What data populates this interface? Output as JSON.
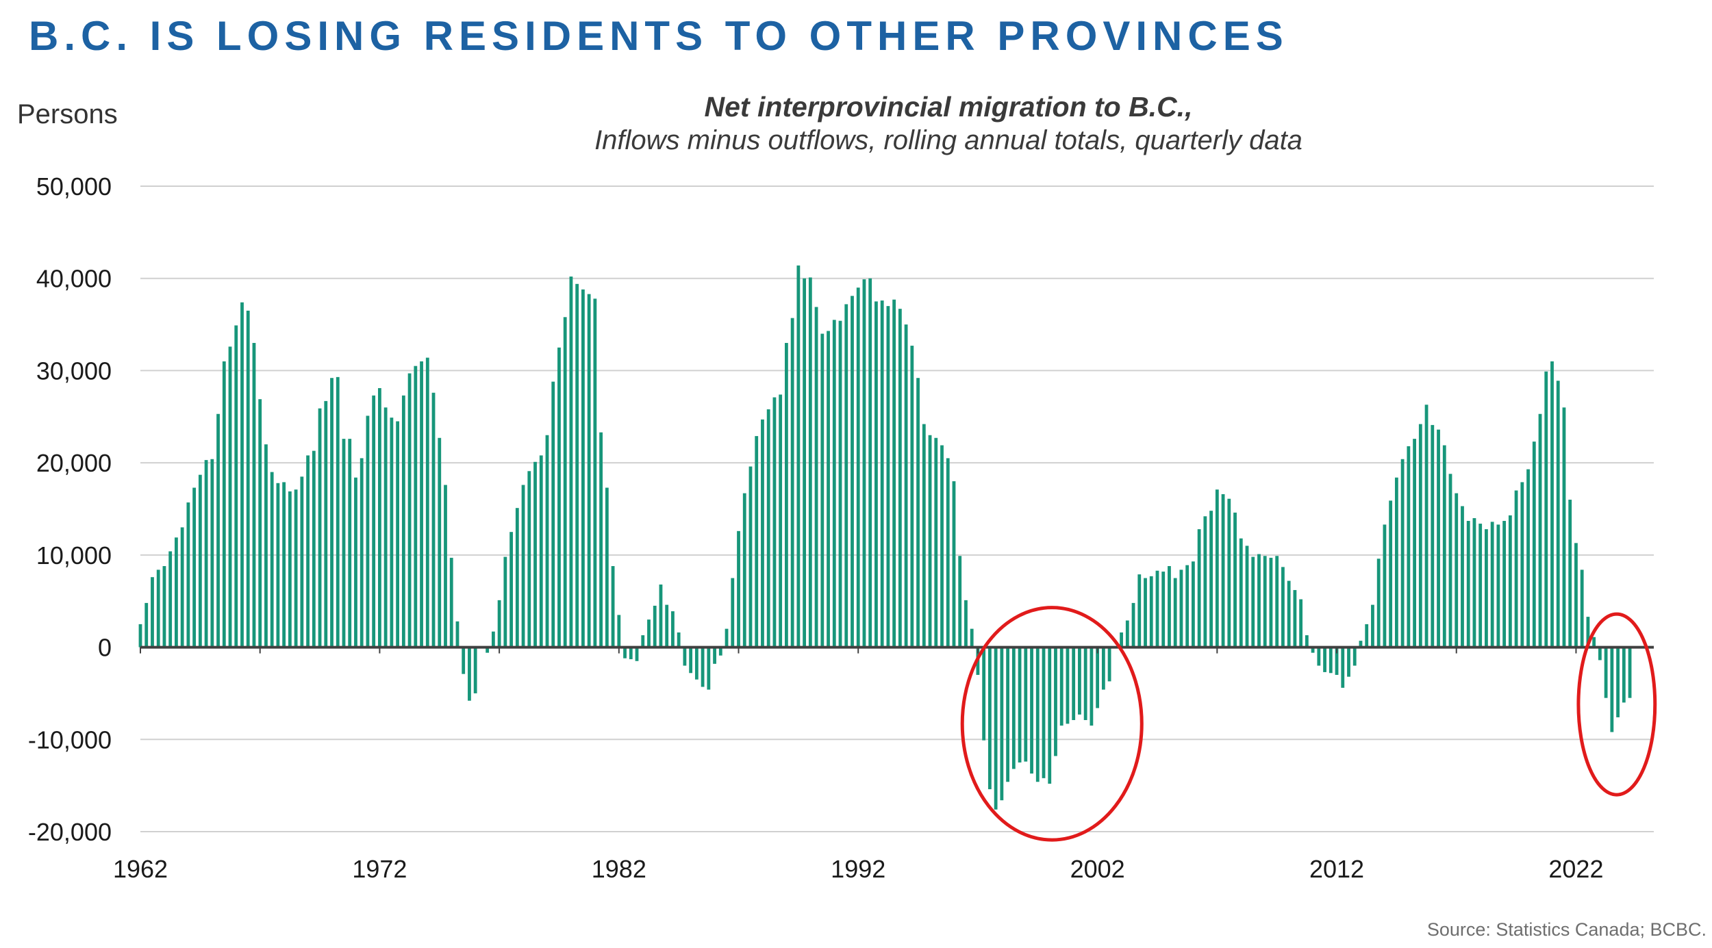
{
  "headline": "B.C. IS LOSING RESIDENTS TO OTHER PROVINCES",
  "source": "Source: Statistics Canada; BCBC.",
  "colors": {
    "headline": "#1d62a3",
    "bars": "#17967a",
    "zero_line": "#404040",
    "grid": "#d0d0d0",
    "highlight_circle": "#e11b1b"
  },
  "chart_data": {
    "type": "bar",
    "title": "Net interprovincial migration to B.C.,",
    "subtitle": "Inflows minus outflows, rolling annual totals, quarterly data",
    "ylabel": "Persons",
    "xlabel": "",
    "ylim": [
      -20000,
      50000
    ],
    "yticks": [
      -20000,
      -10000,
      0,
      10000,
      20000,
      30000,
      40000,
      50000
    ],
    "ytick_labels": [
      "-20,000",
      "-10,000",
      "0",
      "10,000",
      "20,000",
      "30,000",
      "40,000",
      "50,000"
    ],
    "xlim": [
      1962,
      2025.25
    ],
    "xticks": [
      1962,
      1972,
      1982,
      1992,
      2002,
      2012,
      2022
    ],
    "xtick_labels": [
      "1962",
      "1972",
      "1982",
      "1992",
      "2002",
      "2012",
      "2022"
    ],
    "grid": true,
    "legend": "none",
    "x_start": 1962.0,
    "x_step": 0.25,
    "values": [
      2500,
      4800,
      7600,
      8400,
      8800,
      10400,
      11900,
      13000,
      15700,
      17300,
      18700,
      20300,
      20400,
      25300,
      31000,
      32600,
      34900,
      37400,
      36500,
      33000,
      26900,
      22000,
      19000,
      17800,
      17900,
      16900,
      17100,
      18500,
      20800,
      21300,
      25900,
      26700,
      29200,
      29300,
      22600,
      22600,
      18400,
      20500,
      25100,
      27300,
      28100,
      26000,
      24900,
      24500,
      27300,
      29700,
      30500,
      31000,
      31400,
      27600,
      22700,
      17600,
      9700,
      2800,
      -2900,
      -5800,
      -5000,
      0,
      -600,
      1700,
      5100,
      9800,
      12500,
      15100,
      17600,
      19100,
      20100,
      20800,
      23000,
      28800,
      32500,
      35800,
      40200,
      39400,
      38800,
      38300,
      37800,
      23300,
      17300,
      8800,
      3500,
      -1200,
      -1300,
      -1500,
      1300,
      3000,
      4500,
      6800,
      4600,
      3900,
      1600,
      -2000,
      -2800,
      -3500,
      -4300,
      -4600,
      -1800,
      -900,
      2000,
      7500,
      12600,
      16700,
      19600,
      22900,
      24700,
      25800,
      27100,
      27400,
      33000,
      35700,
      41400,
      40000,
      40100,
      36900,
      34000,
      34300,
      35500,
      35400,
      37200,
      38100,
      39000,
      39900,
      40000,
      37500,
      37600,
      37000,
      37700,
      36700,
      35000,
      32700,
      29200,
      24200,
      23000,
      22700,
      21900,
      20500,
      18000,
      9900,
      5100,
      2000,
      -3000,
      -10100,
      -15400,
      -17600,
      -16600,
      -14600,
      -13200,
      -12500,
      -12400,
      -13700,
      -14600,
      -14200,
      -14800,
      -11800,
      -8500,
      -8300,
      -7900,
      -7300,
      -7900,
      -8500,
      -6600,
      -4600,
      -3700,
      0,
      1600,
      2900,
      4800,
      7900,
      7500,
      7700,
      8300,
      8200,
      8800,
      7500,
      8400,
      8900,
      9300,
      12800,
      14200,
      14800,
      17100,
      16600,
      16100,
      14600,
      11800,
      11000,
      9800,
      10100,
      9900,
      9700,
      9900,
      8700,
      7200,
      6200,
      5200,
      1300,
      -600,
      -2000,
      -2700,
      -2800,
      -3000,
      -4400,
      -3200,
      -2000,
      700,
      2500,
      4600,
      9600,
      13300,
      15900,
      18400,
      20400,
      21800,
      22600,
      24200,
      26300,
      24100,
      23600,
      21900,
      18800,
      16700,
      15300,
      13700,
      14000,
      13400,
      12800,
      13600,
      13300,
      13700,
      14300,
      17000,
      17900,
      19300,
      22300,
      25300,
      29900,
      31000,
      28900,
      26000,
      16000,
      11300,
      8400,
      3300,
      1100,
      -1400,
      -5500,
      -9200,
      -7600,
      -6000,
      -5500
    ]
  },
  "annotations": [
    {
      "type": "ellipse",
      "center_x": 2000.1,
      "center_y": -8300,
      "radius_x": 3.75,
      "radius_y": 12600
    },
    {
      "type": "ellipse",
      "center_x": 2023.7,
      "center_y": -6200,
      "radius_x": 1.6,
      "radius_y": 9800
    }
  ]
}
